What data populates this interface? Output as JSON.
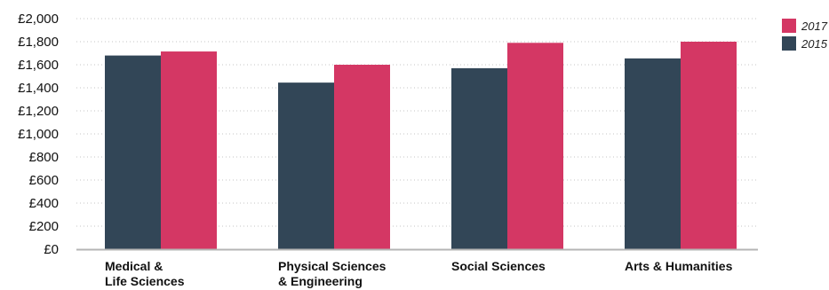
{
  "chart_data": {
    "type": "bar",
    "title": "",
    "xlabel": "",
    "ylabel": "",
    "categories": [
      [
        "Medical &",
        "Life Sciences"
      ],
      [
        "Physical Sciences",
        "& Engineering"
      ],
      [
        "Social Sciences"
      ],
      [
        "Arts & Humanities"
      ]
    ],
    "series": [
      {
        "name": "2015",
        "color": "#324657",
        "values": [
          1680,
          1445,
          1570,
          1655
        ]
      },
      {
        "name": "2017",
        "color": "#d43764",
        "values": [
          1715,
          1600,
          1790,
          1800
        ]
      }
    ],
    "ylim": [
      0,
      2000
    ],
    "y_ticks": [
      0,
      200,
      400,
      600,
      800,
      1000,
      1200,
      1400,
      1600,
      1800,
      2000
    ],
    "y_tick_labels": [
      "£0",
      "£200",
      "£400",
      "£600",
      "£800",
      "£1,000",
      "£1,200",
      "£1,400",
      "£1,600",
      "£1,800",
      "£2,000"
    ],
    "grid": true,
    "grid_style": "dotted",
    "legend": {
      "placement": "top-right",
      "order": [
        "2017",
        "2015"
      ]
    }
  }
}
